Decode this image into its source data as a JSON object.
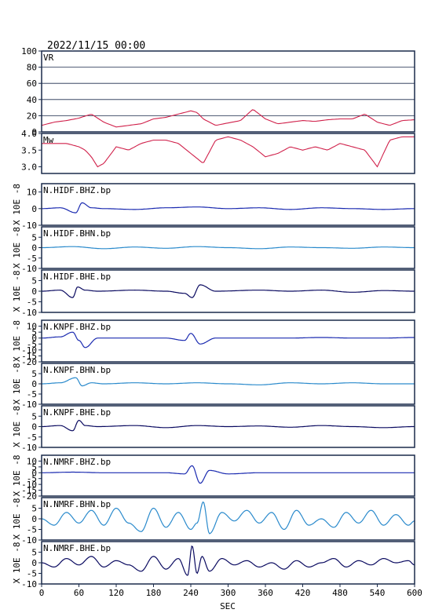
{
  "header": {
    "datetime": "2022/11/15 00:00"
  },
  "x_axis": {
    "label": "SEC",
    "ticks": [
      "0",
      "60",
      "120",
      "180",
      "240",
      "300",
      "360",
      "420",
      "480",
      "540",
      "600"
    ]
  },
  "colors": {
    "curve": "#d0204a",
    "dark_trace": "#0a0a60",
    "blue_trace": "#1a2ab0",
    "light_trace": "#2a8acc",
    "frame": "#1a2a4a"
  },
  "chart_data": [
    {
      "type": "line",
      "name_label": "VR",
      "ylim": [
        0,
        100
      ],
      "yticks": [
        "0",
        "20",
        "40",
        "60",
        "80",
        "100"
      ],
      "grid": true,
      "x": [
        0,
        20,
        40,
        60,
        80,
        100,
        120,
        140,
        160,
        180,
        200,
        220,
        240,
        250,
        260,
        280,
        300,
        320,
        340,
        360,
        380,
        400,
        420,
        440,
        460,
        480,
        500,
        520,
        540,
        560,
        580,
        600
      ],
      "values": [
        8,
        12,
        14,
        17,
        22,
        12,
        6,
        8,
        10,
        16,
        18,
        22,
        26,
        24,
        16,
        8,
        11,
        14,
        28,
        16,
        10,
        12,
        14,
        13,
        15,
        16,
        16,
        22,
        12,
        8,
        14,
        15
      ]
    },
    {
      "type": "line",
      "name_label": "Mw",
      "ylim": [
        2.8,
        4.0
      ],
      "yticks": [
        "3.0",
        "3.5",
        "4.0"
      ],
      "grid": false,
      "x": [
        0,
        20,
        40,
        60,
        70,
        80,
        90,
        100,
        120,
        140,
        160,
        180,
        200,
        220,
        240,
        260,
        280,
        300,
        320,
        340,
        360,
        380,
        400,
        420,
        440,
        460,
        480,
        500,
        520,
        540,
        560,
        580,
        600
      ],
      "values": [
        3.7,
        3.7,
        3.7,
        3.6,
        3.5,
        3.3,
        3.0,
        3.1,
        3.6,
        3.5,
        3.7,
        3.8,
        3.8,
        3.7,
        3.4,
        3.1,
        3.8,
        3.9,
        3.8,
        3.6,
        3.3,
        3.4,
        3.6,
        3.5,
        3.6,
        3.5,
        3.7,
        3.6,
        3.5,
        3.0,
        3.8,
        3.9,
        3.9
      ]
    },
    {
      "type": "line",
      "name_label": "N.HIDF.BHZ.bp",
      "ylabel": "X 10E -8",
      "ylim": [
        -10,
        15
      ],
      "yticks": [
        "10",
        "0",
        "-10"
      ],
      "x": [
        0,
        30,
        55,
        65,
        80,
        100,
        150,
        200,
        250,
        300,
        350,
        400,
        450,
        500,
        550,
        600
      ],
      "values": [
        0,
        0.5,
        -2.5,
        3.5,
        0.5,
        0,
        -0.5,
        0.5,
        1,
        0,
        0.5,
        -0.5,
        0.5,
        0,
        -0.5,
        0
      ]
    },
    {
      "type": "line",
      "name_label": "N.HIDF.BHN.bp",
      "ylabel": "X 10E -8",
      "ylim": [
        -10,
        10
      ],
      "yticks": [
        "5",
        "0",
        "-5",
        "-10"
      ],
      "x": [
        0,
        50,
        100,
        150,
        200,
        250,
        300,
        350,
        400,
        450,
        500,
        550,
        600
      ],
      "values": [
        0,
        0.5,
        -0.5,
        0.3,
        -0.3,
        0.5,
        0,
        -0.5,
        0.3,
        0,
        -0.3,
        0.3,
        0
      ]
    },
    {
      "type": "line",
      "name_label": "N.HIDF.BHE.bp",
      "ylabel": "X 10E -8",
      "ylim": [
        -10,
        10
      ],
      "yticks": [
        "5",
        "0",
        "-5",
        "-10"
      ],
      "x": [
        0,
        30,
        50,
        58,
        70,
        90,
        150,
        200,
        230,
        242,
        255,
        280,
        350,
        400,
        450,
        500,
        550,
        600
      ],
      "values": [
        0,
        0.5,
        -3,
        2,
        0.5,
        0,
        0.5,
        0,
        -1,
        -3,
        3,
        0,
        0.5,
        0,
        0.5,
        -0.5,
        0.3,
        0
      ]
    },
    {
      "type": "line",
      "name_label": "N.KNPF.BHZ.bp",
      "ylabel": "X 10E -8",
      "ylim": [
        -20,
        15
      ],
      "yticks": [
        "10",
        "5",
        "0",
        "-5",
        "-10",
        "-15",
        "-20"
      ],
      "x": [
        0,
        30,
        50,
        60,
        70,
        90,
        150,
        200,
        230,
        240,
        255,
        280,
        350,
        400,
        450,
        500,
        550,
        600
      ],
      "values": [
        0,
        1,
        5,
        -2,
        -8,
        0,
        0,
        0,
        -2,
        4,
        -5,
        0,
        0,
        0,
        0.5,
        0,
        0,
        0.5
      ]
    },
    {
      "type": "line",
      "name_label": "N.KNPF.BHN.bp",
      "ylabel": "X 10E -8",
      "ylim": [
        -10,
        10
      ],
      "yticks": [
        "5",
        "0",
        "-5",
        "-10"
      ],
      "x": [
        0,
        30,
        55,
        65,
        80,
        100,
        150,
        200,
        250,
        300,
        350,
        400,
        450,
        500,
        550,
        600
      ],
      "values": [
        0,
        0.5,
        3,
        -1,
        0.5,
        0,
        0.5,
        0,
        0.5,
        0,
        -0.5,
        0.5,
        0,
        0.5,
        0,
        0
      ]
    },
    {
      "type": "line",
      "name_label": "N.KNPF.BHE.bp",
      "ylabel": "X 10E -8",
      "ylim": [
        -10,
        10
      ],
      "yticks": [
        "5",
        "0",
        "-5",
        "-10"
      ],
      "x": [
        0,
        30,
        50,
        60,
        70,
        90,
        150,
        200,
        250,
        300,
        350,
        400,
        450,
        500,
        550,
        600
      ],
      "values": [
        0,
        0.5,
        -2,
        3,
        0.5,
        0,
        0.5,
        -0.5,
        0.5,
        0,
        0.3,
        -0.3,
        0.5,
        0,
        -0.5,
        0
      ]
    },
    {
      "type": "line",
      "name_label": "N.NMRF.BHZ.bp",
      "ylabel": "X 10E -8",
      "ylim": [
        -20,
        15
      ],
      "yticks": [
        "10",
        "5",
        "0",
        "-5",
        "-10",
        "-15",
        "-20"
      ],
      "x": [
        0,
        50,
        100,
        150,
        200,
        230,
        242,
        255,
        270,
        300,
        350,
        400,
        450,
        500,
        550,
        600
      ],
      "values": [
        0,
        0.5,
        0,
        0,
        0,
        -1,
        6,
        -9,
        2,
        -1,
        0,
        0,
        0,
        0,
        0,
        0
      ]
    },
    {
      "type": "line",
      "name_label": "N.NMRF.BHN.bp",
      "ylabel": "X 10E -8",
      "ylim": [
        -10,
        10
      ],
      "yticks": [
        "5",
        "0",
        "-5",
        "-10"
      ],
      "x": [
        0,
        20,
        40,
        60,
        80,
        100,
        120,
        140,
        160,
        180,
        200,
        220,
        240,
        250,
        260,
        270,
        290,
        310,
        330,
        350,
        370,
        390,
        410,
        430,
        450,
        470,
        490,
        510,
        530,
        550,
        570,
        590,
        600
      ],
      "values": [
        0,
        -3,
        3,
        -2,
        4,
        -3,
        5,
        -2,
        -6,
        5,
        -4,
        3,
        -5,
        -2,
        8,
        -7,
        3,
        -1,
        4,
        -2,
        3,
        -5,
        4,
        -3,
        0,
        -4,
        3,
        -2,
        4,
        -3,
        2,
        -3,
        -1
      ]
    },
    {
      "type": "line",
      "name_label": "N.NMRF.BHE.bp",
      "ylabel": "X 10E -8",
      "ylim": [
        -10,
        10
      ],
      "yticks": [
        "5",
        "0",
        "-5",
        "-10"
      ],
      "x": [
        0,
        20,
        40,
        60,
        80,
        100,
        120,
        140,
        160,
        180,
        200,
        220,
        235,
        242,
        250,
        258,
        270,
        290,
        310,
        330,
        350,
        370,
        390,
        410,
        430,
        450,
        470,
        490,
        510,
        530,
        550,
        570,
        590,
        600
      ],
      "values": [
        0,
        -2,
        2,
        -1,
        3,
        -2,
        1,
        -1,
        -4,
        3,
        -3,
        2,
        -6,
        8,
        -5,
        3,
        -4,
        2,
        -1,
        1,
        -2,
        0,
        -3,
        1,
        -2,
        0,
        2,
        -2,
        1,
        -1,
        2,
        0,
        1,
        -1
      ]
    }
  ]
}
